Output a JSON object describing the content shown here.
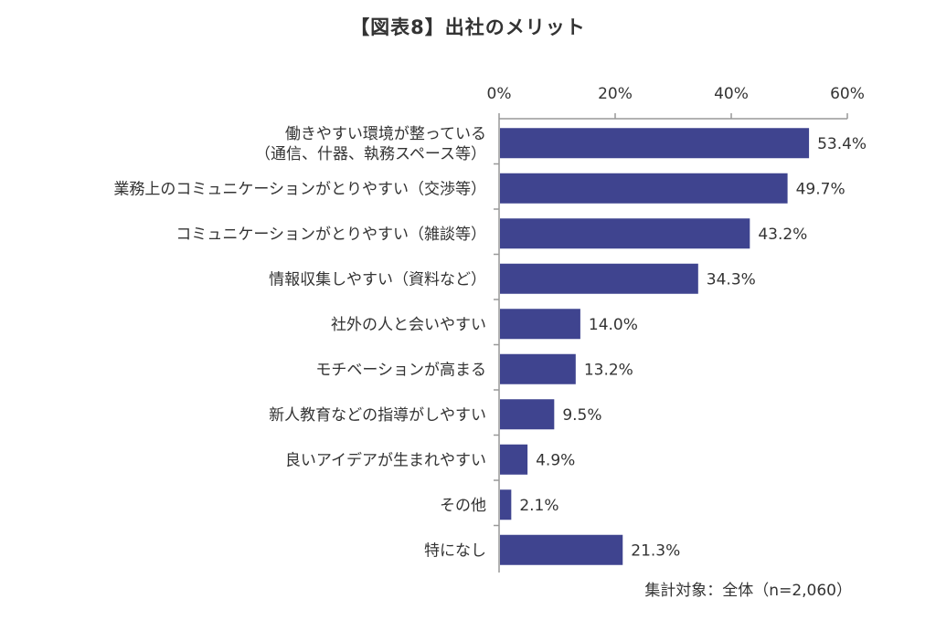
{
  "title": "【図表8】出社のメリット",
  "note": "集計対象：全体（n=2,060）",
  "colors": {
    "bar": "#3f448f",
    "axis": "#999999",
    "text": "#333333"
  },
  "chart_data": {
    "type": "bar",
    "orientation": "horizontal",
    "title": "【図表8】出社のメリット",
    "xlim": [
      0,
      60
    ],
    "x_ticks": [
      "0%",
      "20%",
      "40%",
      "60%"
    ],
    "x_tick_values": [
      0,
      20,
      40,
      60
    ],
    "axis_position": "top",
    "grid": false,
    "categories": [
      [
        "働きやすい環境が整っている",
        "（通信、什器、執務スペース等）"
      ],
      [
        "業務上のコミュニケーションがとりやすい（交渉等）"
      ],
      [
        "コミュニケーションがとりやすい（雑談等）"
      ],
      [
        "情報収集しやすい（資料など）"
      ],
      [
        "社外の人と会いやすい"
      ],
      [
        "モチベーションが高まる"
      ],
      [
        "新人教育などの指導がしやすい"
      ],
      [
        "良いアイデアが生まれやすい"
      ],
      [
        "その他"
      ],
      [
        "特になし"
      ]
    ],
    "values": [
      53.4,
      49.7,
      43.2,
      34.3,
      14.0,
      13.2,
      9.5,
      4.9,
      2.1,
      21.3
    ],
    "value_labels": [
      "53.4%",
      "49.7%",
      "43.2%",
      "34.3%",
      "14.0%",
      "13.2%",
      "9.5%",
      "4.9%",
      "2.1%",
      "21.3%"
    ]
  }
}
